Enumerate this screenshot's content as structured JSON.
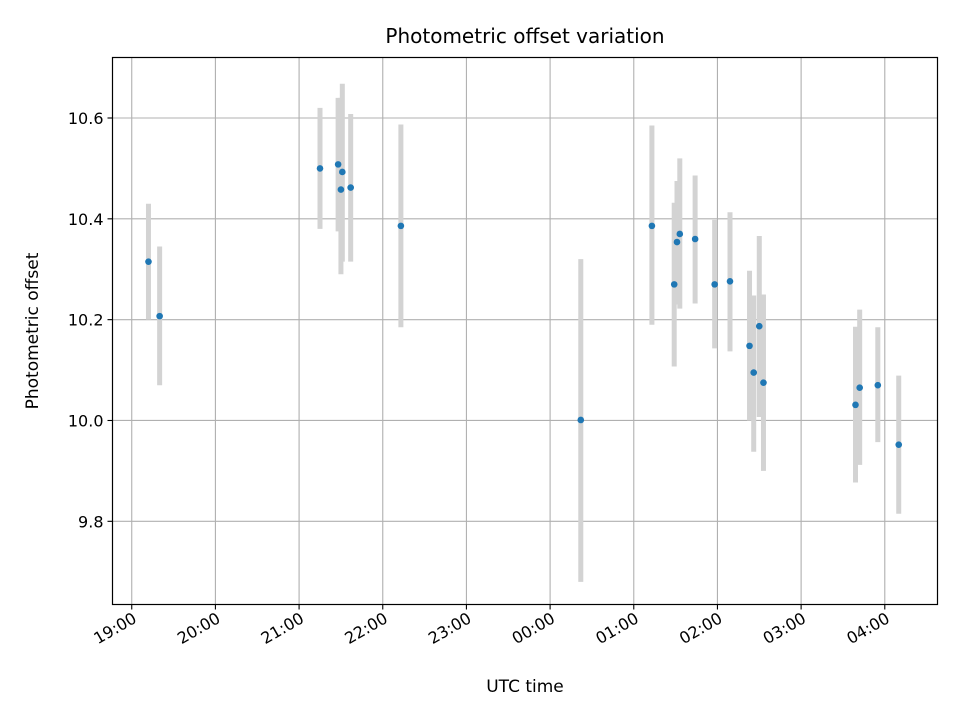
{
  "chart_data": {
    "type": "scatter",
    "title": "Photometric offset variation",
    "xlabel": "UTC time",
    "ylabel": "Photometric offset",
    "x_axis": {
      "kind": "time",
      "range_hours": [
        18.77,
        28.63
      ],
      "ticks": [
        {
          "label": "19:00",
          "hour": 19
        },
        {
          "label": "20:00",
          "hour": 20
        },
        {
          "label": "21:00",
          "hour": 21
        },
        {
          "label": "22:00",
          "hour": 22
        },
        {
          "label": "23:00",
          "hour": 23
        },
        {
          "label": "00:00",
          "hour": 24
        },
        {
          "label": "01:00",
          "hour": 25
        },
        {
          "label": "02:00",
          "hour": 26
        },
        {
          "label": "03:00",
          "hour": 27
        },
        {
          "label": "04:00",
          "hour": 28
        }
      ]
    },
    "y_axis": {
      "range": [
        9.635,
        10.72
      ],
      "ticks": [
        9.8,
        10.0,
        10.2,
        10.4,
        10.6
      ],
      "tick_labels": [
        "9.8",
        "10.0",
        "10.2",
        "10.4",
        "10.6"
      ]
    },
    "grid": true,
    "colors": {
      "point": "#1f77b4",
      "errorbar": "#d3d3d3",
      "grid": "#b0b0b0"
    },
    "points": [
      {
        "time": "19:12",
        "y": 10.315,
        "lo": 10.2,
        "hi": 10.43
      },
      {
        "time": "19:20",
        "y": 10.207,
        "lo": 10.07,
        "hi": 10.345
      },
      {
        "time": "21:15",
        "y": 10.5,
        "lo": 10.38,
        "hi": 10.62
      },
      {
        "time": "21:28",
        "y": 10.508,
        "lo": 10.375,
        "hi": 10.64
      },
      {
        "time": "21:30",
        "y": 10.458,
        "lo": 10.29,
        "hi": 10.64
      },
      {
        "time": "21:31",
        "y": 10.493,
        "lo": 10.315,
        "hi": 10.668
      },
      {
        "time": "21:37",
        "y": 10.462,
        "lo": 10.315,
        "hi": 10.608
      },
      {
        "time": "22:13",
        "y": 10.386,
        "lo": 10.185,
        "hi": 10.587
      },
      {
        "time": "00:22",
        "y": 10.001,
        "lo": 9.68,
        "hi": 10.32
      },
      {
        "time": "01:13",
        "y": 10.386,
        "lo": 10.19,
        "hi": 10.585
      },
      {
        "time": "01:29",
        "y": 10.27,
        "lo": 10.107,
        "hi": 10.432
      },
      {
        "time": "01:31",
        "y": 10.354,
        "lo": 10.23,
        "hi": 10.475
      },
      {
        "time": "01:33",
        "y": 10.37,
        "lo": 10.222,
        "hi": 10.52
      },
      {
        "time": "01:44",
        "y": 10.36,
        "lo": 10.232,
        "hi": 10.486
      },
      {
        "time": "01:58",
        "y": 10.27,
        "lo": 10.143,
        "hi": 10.398
      },
      {
        "time": "02:09",
        "y": 10.276,
        "lo": 10.137,
        "hi": 10.413
      },
      {
        "time": "02:23",
        "y": 10.148,
        "lo": 10.0,
        "hi": 10.297
      },
      {
        "time": "02:26",
        "y": 10.095,
        "lo": 9.938,
        "hi": 10.248
      },
      {
        "time": "02:30",
        "y": 10.187,
        "lo": 10.007,
        "hi": 10.366
      },
      {
        "time": "02:33",
        "y": 10.075,
        "lo": 9.9,
        "hi": 10.25
      },
      {
        "time": "03:39",
        "y": 10.031,
        "lo": 9.877,
        "hi": 10.186
      },
      {
        "time": "03:42",
        "y": 10.065,
        "lo": 9.912,
        "hi": 10.22
      },
      {
        "time": "03:55",
        "y": 10.07,
        "lo": 9.957,
        "hi": 10.185
      },
      {
        "time": "04:10",
        "y": 9.952,
        "lo": 9.815,
        "hi": 10.089
      }
    ]
  }
}
